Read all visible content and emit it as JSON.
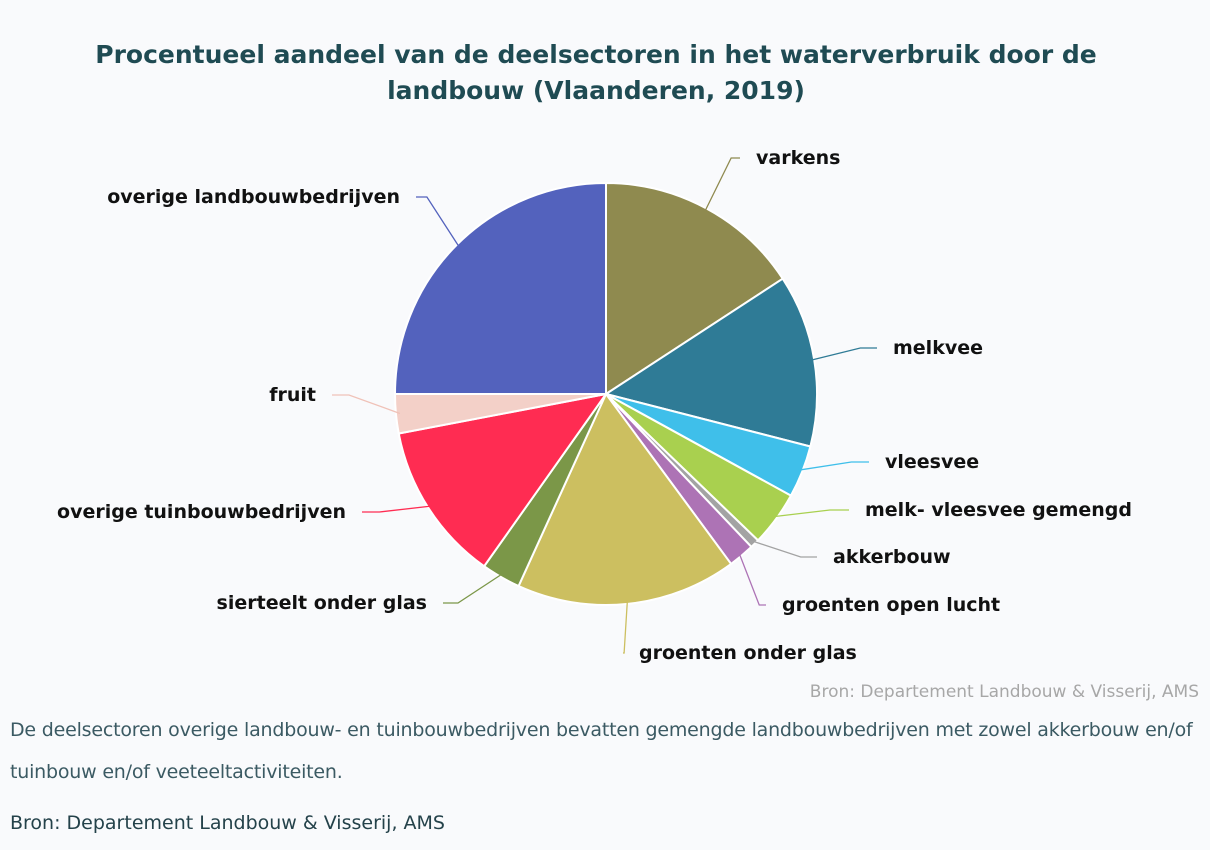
{
  "chart_data": {
    "type": "pie",
    "title": [
      "Procentueel aandeel van de deelsectoren in het waterverbruik door de",
      "landbouw (Vlaanderen, 2019)"
    ],
    "credit": "Bron: Departement Landbouw & Visserij, AMS",
    "slices": [
      {
        "name": "varkens",
        "value": 15.8,
        "color": "#8f8a4f"
      },
      {
        "name": "melkvee",
        "value": 13.2,
        "color": "#2f7b96"
      },
      {
        "name": "vleesvee",
        "value": 4.0,
        "color": "#3fbfea"
      },
      {
        "name": "melk- vleesvee gemengd",
        "value": 4.2,
        "color": "#a9d04f"
      },
      {
        "name": "akkerbouw",
        "value": 0.7,
        "color": "#a3a3a3"
      },
      {
        "name": "groenten open lucht",
        "value": 2.0,
        "color": "#ad73b5"
      },
      {
        "name": "groenten onder glas",
        "value": 16.9,
        "color": "#ccbf60"
      },
      {
        "name": "sierteelt onder glas",
        "value": 3.0,
        "color": "#7b9748"
      },
      {
        "name": "overige tuinbouwbedrijven",
        "value": 12.2,
        "color": "#ff2c52"
      },
      {
        "name": "fruit",
        "value": 3.0,
        "color": "#f3d0c8"
      },
      {
        "name": "overige landbouwbedrijven",
        "value": 25.0,
        "color": "#5362bd"
      }
    ]
  },
  "note": "De deelsectoren overige landbouw- en tuinbouwbedrijven bevatten gemengde landbouwbedrijven met zowel akkerbouw en/of tuinbouw en/of veeteeltactiviteiten.",
  "source": "Bron: Departement Landbouw & Visserij, AMS"
}
